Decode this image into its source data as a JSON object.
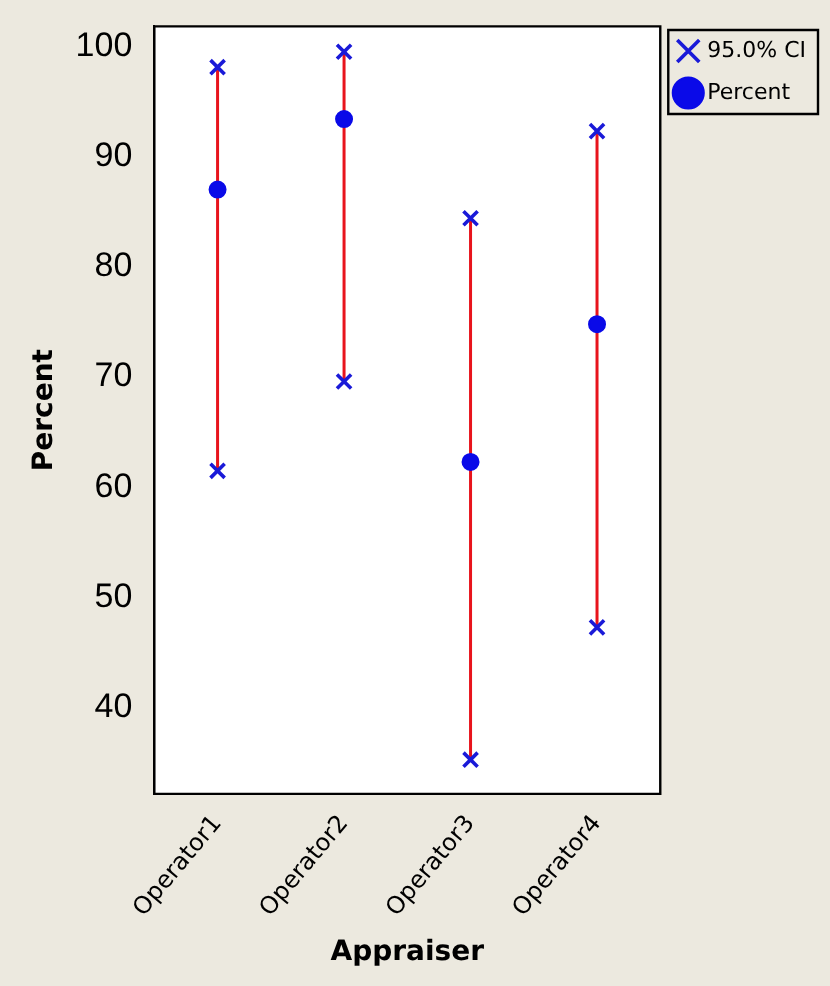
{
  "chart_data": {
    "type": "scatter",
    "xlabel": "Appraiser",
    "ylabel": "Percent",
    "categories": [
      "Operator1",
      "Operator2",
      "Operator3",
      "Operator4"
    ],
    "series": [
      {
        "name": "95.0% CI",
        "color": "#1a1ad8",
        "marker": "cross",
        "x": [
          "Operator1",
          "Operator1",
          "Operator2",
          "Operator2",
          "Operator3",
          "Operator3",
          "Operator4",
          "Operator4"
        ],
        "values": [
          61.5,
          98.1,
          69.6,
          99.5,
          35.3,
          84.4,
          47.3,
          92.3
        ]
      },
      {
        "name": "Percent",
        "color": "#0a0ae8",
        "marker": "circle",
        "values": [
          87.0,
          93.4,
          62.3,
          74.8
        ],
        "errors": [
          [
            61.5,
            98.1
          ],
          [
            69.6,
            99.5
          ],
          [
            35.3,
            84.4
          ],
          [
            47.3,
            92.3
          ]
        ]
      }
    ],
    "ylim": [
      32.2,
      101.8
    ],
    "yticks": [
      40,
      50,
      60,
      70,
      80,
      90,
      100
    ],
    "grid": false,
    "legend": "top right"
  }
}
